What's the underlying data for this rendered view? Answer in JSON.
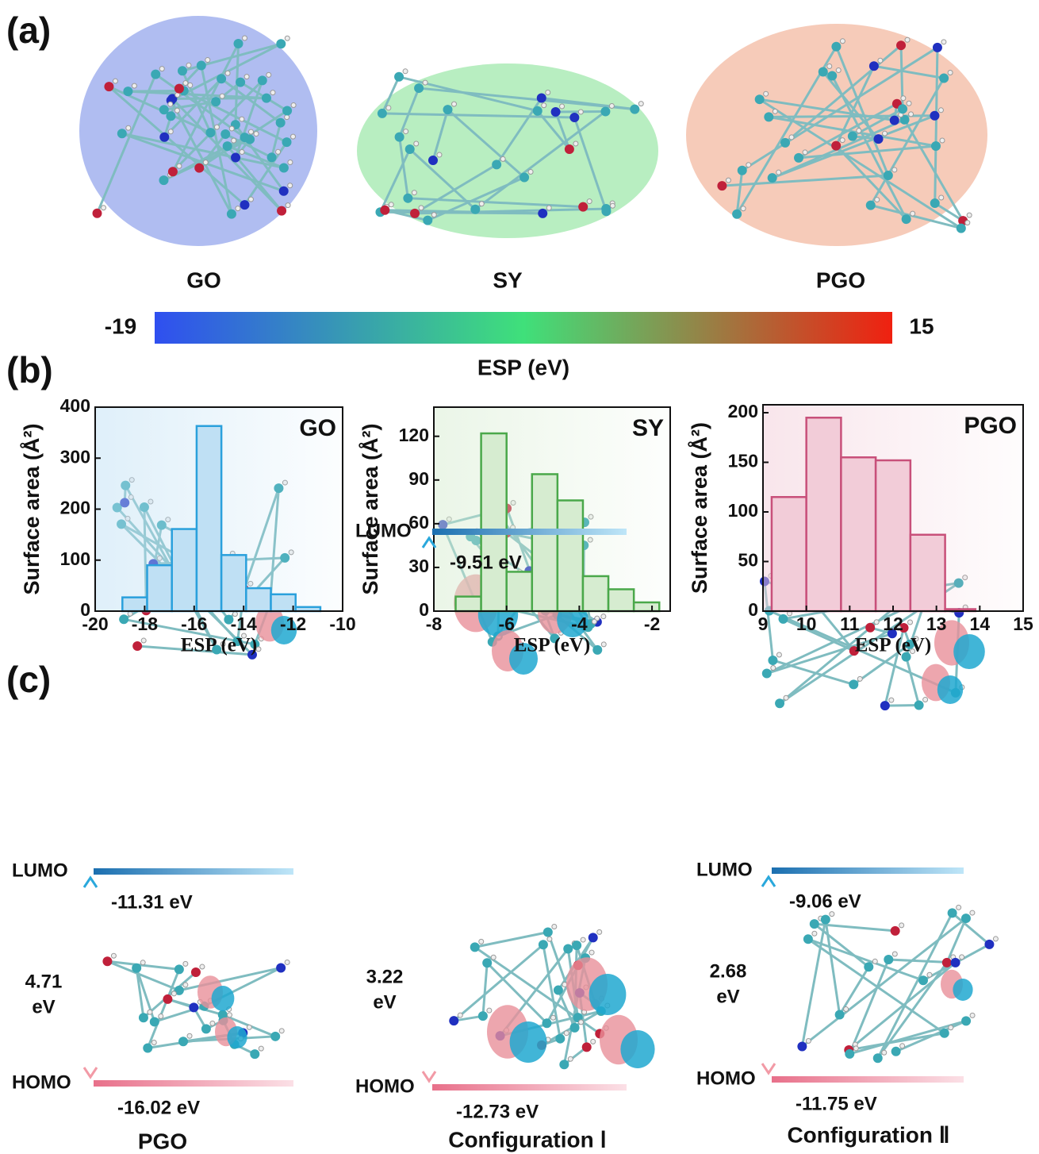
{
  "panel_labels": [
    "(a)",
    "(b)",
    "(c)"
  ],
  "panel_a": {
    "molecules": [
      "GO",
      "SY",
      "PGO"
    ],
    "colorbar": {
      "min": -19,
      "max": 15,
      "label": "ESP (eV)",
      "colors": [
        "#2f4ff0",
        "#3fe07a",
        "#f02010"
      ]
    }
  },
  "chart_data": [
    {
      "type": "histogram",
      "title": "GO",
      "title_color": "#2aa0dc",
      "color": "#bfe0f4",
      "edge_color": "#2aa0dc",
      "bins": [
        -18.9,
        -17.9,
        -16.9,
        -15.9,
        -14.9,
        -13.9,
        -12.9,
        -11.9,
        -10.9
      ],
      "values": [
        27,
        90,
        161,
        363,
        110,
        45,
        33,
        8
      ],
      "xlim": [
        -20,
        -10
      ],
      "xticks": [
        -20,
        -18,
        -16,
        -14,
        -12,
        -10
      ],
      "ylim": [
        0,
        400
      ],
      "yticks": [
        0,
        100,
        200,
        300,
        400
      ],
      "xlabel": "ESP (eV)",
      "ylabel": "Surface area (Å²)"
    },
    {
      "type": "histogram",
      "title": "SY",
      "title_color": "#3aa83a",
      "color": "#d6ecd0",
      "edge_color": "#4aa84a",
      "bins": [
        -7.4,
        -6.7,
        -6.0,
        -5.3,
        -4.6,
        -3.9,
        -3.2,
        -2.5,
        -1.8
      ],
      "values": [
        10,
        122,
        27,
        94,
        76,
        24,
        15,
        6
      ],
      "xlim": [
        -8,
        -1.5
      ],
      "xticks": [
        -8,
        -6,
        -4,
        -2
      ],
      "ylim": [
        0,
        140
      ],
      "yticks": [
        0,
        30,
        60,
        90,
        120
      ],
      "xlabel": "ESP (eV)",
      "ylabel": "Surface area (Å²)"
    },
    {
      "type": "histogram",
      "title": "PGO",
      "title_color": "#d0457a",
      "color": "#f2ccd8",
      "edge_color": "#c8507a",
      "bins": [
        9.2,
        10.0,
        10.8,
        11.6,
        12.4,
        13.2,
        13.9
      ],
      "values": [
        115,
        195,
        155,
        152,
        77,
        2
      ],
      "xlim": [
        9,
        15
      ],
      "xticks": [
        9,
        10,
        11,
        12,
        13,
        14,
        15
      ],
      "ylim": [
        0,
        208
      ],
      "yticks": [
        0,
        50,
        100,
        150,
        200
      ],
      "xlabel": "ESP (eV)",
      "ylabel": "Surface area (Å²)"
    }
  ],
  "panel_c": {
    "lumo_color": "#2aa8dc",
    "homo_color": "#f29aa6",
    "columns": [
      {
        "name": "PGO",
        "lumo_label": "LUMO",
        "lumo": "-11.31 eV",
        "homo_label": "HOMO",
        "homo": "-16.02 eV",
        "gap": [
          "4.71",
          "eV"
        ]
      },
      {
        "name": "Configuration Ⅰ",
        "lumo_label": "LUMO",
        "lumo": "-9.51 eV",
        "homo_label": "HOMO",
        "homo": "-12.73 eV",
        "gap": [
          "3.22",
          "eV"
        ]
      },
      {
        "name": "Configuration Ⅱ",
        "lumo_label": "LUMO",
        "lumo": "-9.06 eV",
        "homo_label": "HOMO",
        "homo": "-11.75 eV",
        "gap": [
          "2.68",
          "eV"
        ]
      }
    ]
  }
}
